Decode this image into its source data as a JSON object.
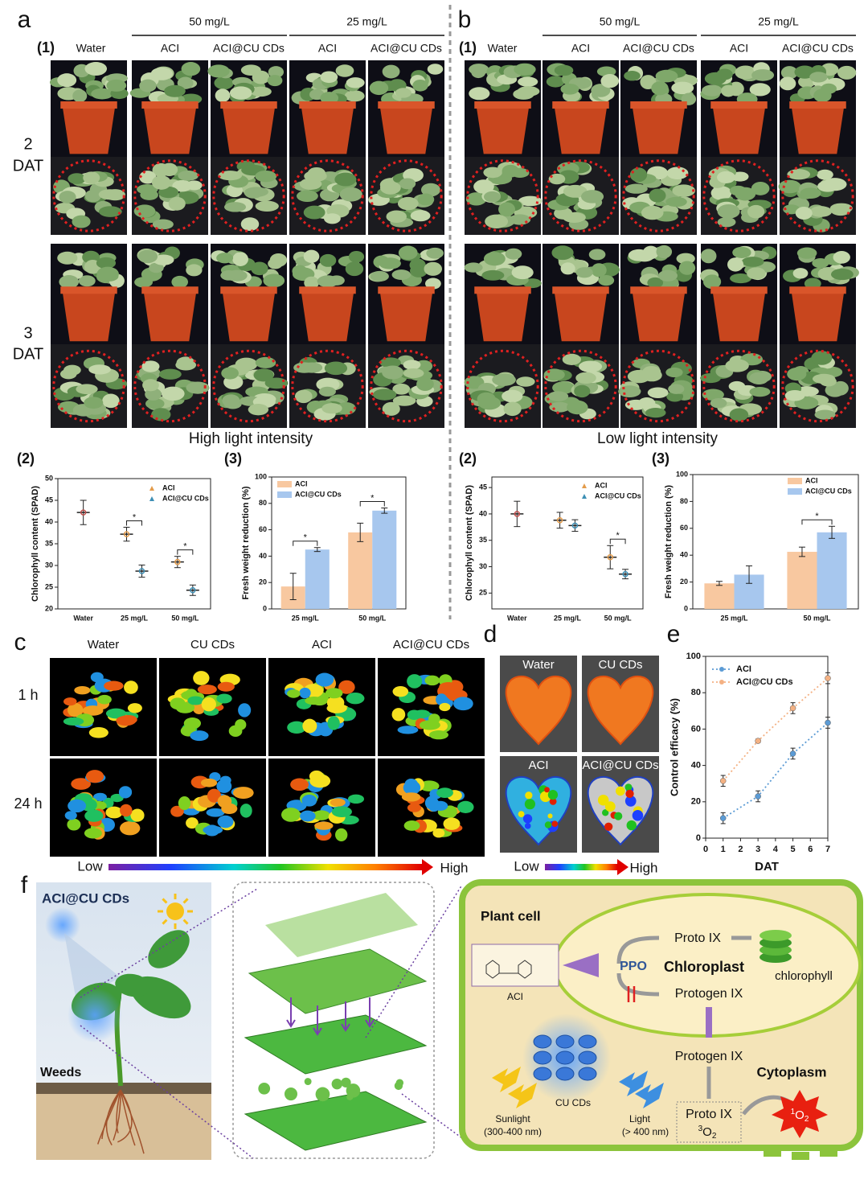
{
  "panel_a": {
    "label": "a",
    "sub_label": "(1)",
    "groups": [
      "50 mg/L",
      "25 mg/L"
    ],
    "columns": [
      "Water",
      "ACI",
      "ACI@CU CDs",
      "ACI",
      "ACI@CU CDs"
    ],
    "rows": [
      {
        "day": "2",
        "unit": "DAT"
      },
      {
        "day": "3",
        "unit": "DAT"
      }
    ],
    "caption": "High light intensity",
    "chart_labels": [
      "(2)",
      "(3)"
    ]
  },
  "panel_b": {
    "label": "b",
    "sub_label": "(1)",
    "groups": [
      "50 mg/L",
      "25 mg/L"
    ],
    "columns": [
      "Water",
      "ACI",
      "ACI@CU CDs",
      "ACI",
      "ACI@CU CDs"
    ],
    "caption": "Low light intensity",
    "chart_labels": [
      "(2)",
      "(3)"
    ]
  },
  "panel_c": {
    "label": "c",
    "columns": [
      "Water",
      "CU CDs",
      "ACI",
      "ACI@CU CDs"
    ],
    "rows": [
      "1 h",
      "24 h"
    ],
    "scale": [
      "Low",
      "High"
    ]
  },
  "panel_d": {
    "label": "d",
    "images": [
      "Water",
      "CU CDs",
      "ACI",
      "ACI@CU CDs"
    ],
    "scale": [
      "Low",
      "High"
    ]
  },
  "panel_e": {
    "label": "e"
  },
  "panel_f": {
    "label": "f",
    "title": "ACI@CU CDs",
    "weeds": "Weeds",
    "cell": "Plant cell",
    "proto_top": "Proto IX",
    "chloroplast": "Chloroplast",
    "ppo": "PPO",
    "chlorophyll": "chlorophyll",
    "protogen_in": "Protogen IX",
    "aci": "ACI",
    "protogen_out": "Protogen IX",
    "cytoplasm": "Cytoplasm",
    "sunlight": "Sunlight",
    "sunlight_range": "(300-400 nm)",
    "dots": "CU CDs",
    "light": "Light",
    "light_range": "(> 400 nm)",
    "proto_bottom": "Proto IX",
    "triplet": {
      "sup": "3",
      "main": "O",
      "sub": "2"
    },
    "singlet": {
      "sup": "1",
      "main": "O",
      "sub": "2"
    }
  },
  "chart_data": [
    {
      "type": "dot",
      "ylabel": "Chlorophyll content (SPAD)",
      "categories": [
        "Water",
        "25 mg/L",
        "50 mg/L"
      ],
      "ylim": [
        20,
        50
      ],
      "yticks": [
        20,
        25,
        30,
        35,
        40,
        45,
        50
      ],
      "series": [
        {
          "color": "#c0504d",
          "values": [
            42.2,
            null,
            null
          ],
          "errors": [
            2.8,
            null,
            null
          ]
        },
        {
          "name": "ACI",
          "color": "#e39b4a",
          "values": [
            null,
            37.2,
            30.8
          ],
          "errors": [
            null,
            1.6,
            1.3
          ]
        },
        {
          "name": "ACI@CU CDs",
          "color": "#3d8fb5",
          "values": [
            null,
            28.7,
            24.3
          ],
          "errors": [
            null,
            1.4,
            1.2
          ]
        }
      ],
      "significance": [
        null,
        "*",
        "*"
      ]
    },
    {
      "type": "bar",
      "ylabel": "Fresh weight reduction (%)",
      "categories": [
        "25 mg/L",
        "50 mg/L"
      ],
      "ylim": [
        0,
        100
      ],
      "yticks": [
        0,
        20,
        40,
        60,
        80,
        100
      ],
      "series": [
        {
          "name": "ACI",
          "color": "#f8c8a0",
          "values": [
            17,
            58
          ],
          "errors": [
            10,
            7
          ]
        },
        {
          "name": "ACI@CU CDs",
          "color": "#a7c7ee",
          "values": [
            45,
            74.5
          ],
          "errors": [
            1.5,
            2
          ]
        }
      ],
      "significance": [
        "*",
        "*"
      ]
    },
    {
      "type": "dot",
      "ylabel": "Chlorophyll content (SPAD)",
      "categories": [
        "Water",
        "25 mg/L",
        "50 mg/L"
      ],
      "ylim": [
        22,
        47
      ],
      "yticks": [
        25,
        30,
        35,
        40,
        45
      ],
      "series": [
        {
          "color": "#c0504d",
          "values": [
            40.0,
            null,
            null
          ],
          "errors": [
            2.4,
            null,
            null
          ]
        },
        {
          "name": "ACI",
          "color": "#e39b4a",
          "values": [
            null,
            38.8,
            31.8
          ],
          "errors": [
            null,
            1.5,
            2.2
          ]
        },
        {
          "name": "ACI@CU CDs",
          "color": "#3d8fb5",
          "values": [
            null,
            37.8,
            28.6
          ],
          "errors": [
            null,
            1.1,
            0.9
          ]
        }
      ],
      "significance": [
        null,
        null,
        "*"
      ]
    },
    {
      "type": "bar",
      "ylabel": "Fresh weight reduction (%)",
      "categories": [
        "25 mg/L",
        "50 mg/L"
      ],
      "ylim": [
        0,
        100
      ],
      "yticks": [
        0,
        20,
        40,
        60,
        80,
        100
      ],
      "series": [
        {
          "name": "ACI",
          "color": "#f8c8a0",
          "values": [
            19,
            42.5
          ],
          "errors": [
            1.5,
            3.5
          ]
        },
        {
          "name": "ACI@CU CDs",
          "color": "#a7c7ee",
          "values": [
            25.5,
            57
          ],
          "errors": [
            6.5,
            4.5
          ]
        }
      ],
      "significance": [
        null,
        "*"
      ]
    },
    {
      "type": "line",
      "xlabel": "DAT",
      "ylabel": "Control efficacy (%)",
      "x": [
        1,
        3,
        5,
        7
      ],
      "xlim": [
        0,
        7
      ],
      "xticks": [
        0,
        1,
        2,
        3,
        4,
        5,
        6,
        7
      ],
      "ylim": [
        0,
        100
      ],
      "yticks": [
        0,
        20,
        40,
        60,
        80,
        100
      ],
      "series": [
        {
          "name": "ACI",
          "color": "#5b9bd5",
          "values": [
            11,
            23,
            46.5,
            63.5
          ],
          "errors": [
            3,
            3,
            3,
            3
          ]
        },
        {
          "name": "ACI@CU CDs",
          "color": "#f4b183",
          "values": [
            31.5,
            53.5,
            71.5,
            88
          ],
          "errors": [
            3,
            1,
            3,
            3
          ]
        }
      ]
    }
  ]
}
